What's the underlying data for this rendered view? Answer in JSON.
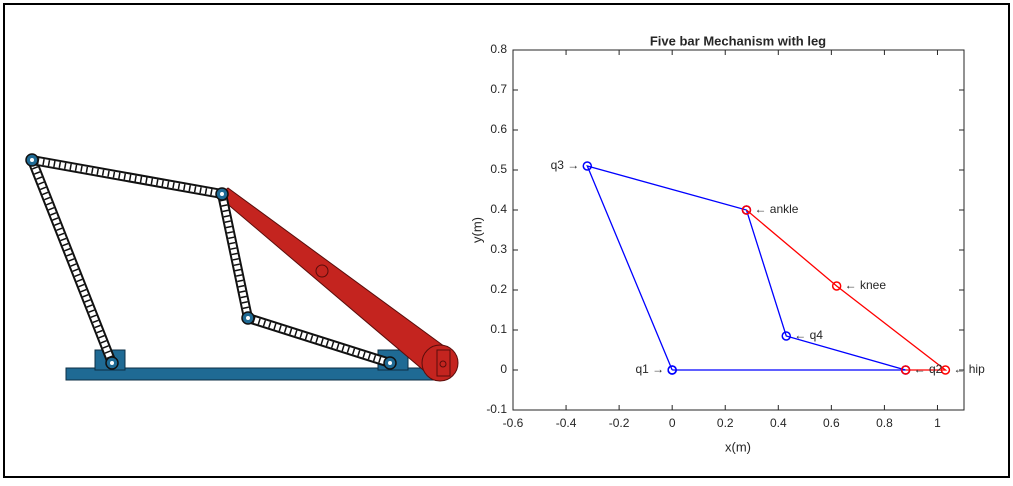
{
  "chart_data": {
    "type": "line",
    "title": "Five bar Mechanism with leg",
    "x_label": "x(m)",
    "y_label": "y(m)",
    "xlim": [
      -0.6,
      1.1
    ],
    "xticks": [
      -0.6,
      -0.4,
      -0.2,
      0,
      0.2,
      0.4,
      0.6,
      0.8,
      1
    ],
    "ylim": [
      -0.1,
      0.8
    ],
    "yticks": [
      -0.1,
      0,
      0.1,
      0.2,
      0.3,
      0.4,
      0.5,
      0.6,
      0.7,
      0.8
    ],
    "grid": false,
    "marker": "circle",
    "series": [
      {
        "color": "#0000ff",
        "x": [
          0,
          -0.32,
          0.28,
          0.43,
          0.88,
          0
        ],
        "values": [
          0,
          0.51,
          0.4,
          0.085,
          0,
          0
        ]
      },
      {
        "color": "#ff0000",
        "x": [
          0.28,
          0.62,
          1.03,
          0.88
        ],
        "values": [
          0.4,
          0.21,
          0,
          0
        ]
      }
    ],
    "annotations": [
      {
        "text": "q1 →",
        "x": 0,
        "y": 0,
        "side": "left"
      },
      {
        "text": "← q2",
        "x": 0.88,
        "y": 0,
        "side": "right"
      },
      {
        "text": "q3 →",
        "x": -0.32,
        "y": 0.51,
        "side": "left"
      },
      {
        "text": "← q4",
        "x": 0.43,
        "y": 0.085,
        "side": "right"
      },
      {
        "text": "← ankle",
        "x": 0.28,
        "y": 0.4,
        "side": "right"
      },
      {
        "text": "← knee",
        "x": 0.62,
        "y": 0.21,
        "side": "right"
      },
      {
        "text": "← hip",
        "x": 1.03,
        "y": 0,
        "side": "right"
      }
    ]
  }
}
